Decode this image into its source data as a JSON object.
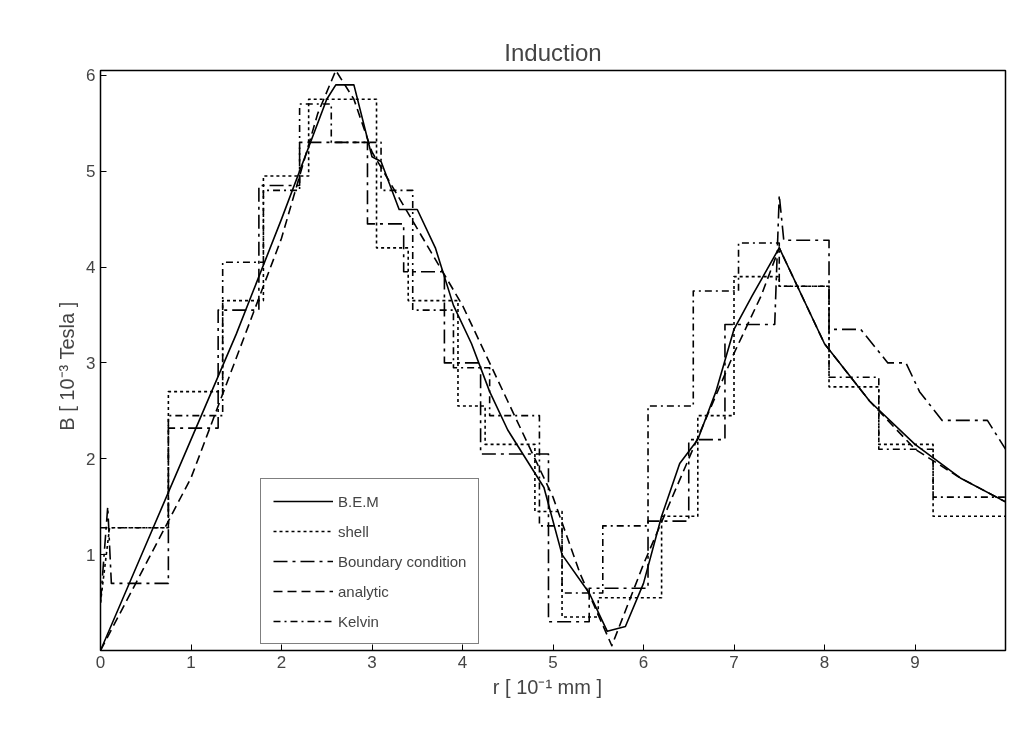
{
  "chart_data": {
    "type": "line",
    "title": "Induction",
    "xlabel": "r   [ 10⁻¹ mm ]",
    "ylabel": "B   [ 10⁻³ Tesla ]",
    "xlim": [
      0,
      10
    ],
    "ylim": [
      0,
      6.05
    ],
    "xticks": [
      0,
      1,
      2,
      3,
      4,
      5,
      6,
      7,
      8,
      9
    ],
    "yticks": [
      1,
      2,
      3,
      4,
      5,
      6
    ],
    "grid": false,
    "legend": "bottom left",
    "marker": "none",
    "series": [
      {
        "name": "B.E.M",
        "color": "#000000",
        "line_style": "solid",
        "x": [
          0,
          0.5,
          1,
          1.5,
          2,
          2.5,
          2.6,
          2.8,
          3.0,
          3.1,
          3.3,
          3.5,
          3.7,
          3.9,
          4.1,
          4.3,
          4.5,
          4.7,
          4.9,
          5.1,
          5.4,
          5.6,
          5.8,
          6.0,
          6.2,
          6.4,
          6.6,
          6.8,
          7.0,
          7.2,
          7.5,
          8.0,
          8.5,
          9.0,
          9.5,
          10
        ],
        "values": [
          0,
          1.1,
          2.2,
          3.3,
          4.5,
          5.75,
          5.9,
          5.9,
          5.15,
          5.1,
          4.6,
          4.6,
          4.2,
          3.6,
          3.2,
          2.7,
          2.3,
          2.0,
          1.7,
          1.0,
          0.6,
          0.2,
          0.25,
          0.7,
          1.4,
          1.95,
          2.2,
          2.7,
          3.35,
          3.7,
          4.2,
          3.2,
          2.6,
          2.15,
          1.8,
          1.55
        ]
      },
      {
        "name": "shell",
        "color": "#000000",
        "line_style": "dotted",
        "x": [
          0,
          0.1,
          0.75,
          0.75,
          1.35,
          1.35,
          1.8,
          1.8,
          2.3,
          2.3,
          2.65,
          3.05,
          3.05,
          3.4,
          3.4,
          3.95,
          3.95,
          4.25,
          4.25,
          4.8,
          4.8,
          5.1,
          5.1,
          5.5,
          5.5,
          6.2,
          6.2,
          6.6,
          6.6,
          7.0,
          7.0,
          7.5,
          7.5,
          8.05,
          8.05,
          8.6,
          8.6,
          9.2,
          9.2,
          10
        ],
        "values": [
          0.5,
          1.28,
          1.28,
          2.7,
          2.7,
          3.65,
          3.65,
          4.95,
          4.95,
          5.75,
          5.75,
          5.75,
          4.2,
          4.2,
          3.65,
          3.65,
          2.55,
          2.55,
          2.15,
          2.15,
          1.45,
          1.45,
          0.35,
          0.35,
          0.55,
          0.55,
          1.4,
          1.4,
          2.45,
          2.45,
          3.9,
          3.9,
          3.8,
          3.8,
          2.75,
          2.75,
          2.15,
          2.15,
          1.4,
          1.4
        ]
      },
      {
        "name": "Boundary condition",
        "color": "#000000",
        "line_style": "dashdot",
        "x": [
          0,
          0.08,
          0.12,
          0.75,
          0.75,
          1.3,
          1.3,
          1.75,
          1.75,
          2.2,
          2.2,
          2.6,
          2.6,
          2.95,
          2.95,
          3.35,
          3.35,
          3.8,
          3.8,
          4.2,
          4.2,
          4.95,
          4.95,
          5.4,
          5.4,
          6.05,
          6.05,
          6.5,
          6.5,
          6.9,
          6.9,
          7.45,
          7.5,
          7.55,
          8.05,
          8.05,
          8.4,
          8.7,
          8.9,
          9.05,
          9.3,
          9.8,
          10
        ],
        "values": [
          0.5,
          1.5,
          0.7,
          0.7,
          2.32,
          2.32,
          3.55,
          3.55,
          4.85,
          4.85,
          5.3,
          5.3,
          5.3,
          5.3,
          4.45,
          4.45,
          3.95,
          3.95,
          3.0,
          3.0,
          2.05,
          2.05,
          0.3,
          0.3,
          0.65,
          0.65,
          1.35,
          1.35,
          2.2,
          2.2,
          3.4,
          3.4,
          4.75,
          4.28,
          4.28,
          3.35,
          3.35,
          3.0,
          3.0,
          2.7,
          2.4,
          2.4,
          2.1
        ]
      },
      {
        "name": "analytic",
        "color": "#000000",
        "line_style": "dashed",
        "x": [
          0,
          1,
          2,
          2.4,
          2.6,
          2.8,
          3,
          3.5,
          4,
          4.5,
          5,
          5.3,
          5.65,
          6,
          6.5,
          7,
          7.3,
          7.5,
          8,
          8.5,
          9,
          9.5,
          10
        ],
        "values": [
          0,
          1.8,
          4.3,
          5.6,
          6.05,
          5.75,
          5.2,
          4.4,
          3.6,
          2.6,
          1.6,
          0.8,
          0.05,
          0.9,
          2.0,
          3.1,
          3.7,
          4.2,
          3.2,
          2.6,
          2.1,
          1.8,
          1.55
        ]
      },
      {
        "name": "Kelvin",
        "color": "#000000",
        "line_style": "dashdot2",
        "x": [
          0,
          0.1,
          0.75,
          0.75,
          1.35,
          1.35,
          1.8,
          1.8,
          2.2,
          2.2,
          2.55,
          2.55,
          3.1,
          3.1,
          3.45,
          3.45,
          3.9,
          3.9,
          4.3,
          4.3,
          4.85,
          4.85,
          5.1,
          5.1,
          5.55,
          5.55,
          6.05,
          6.05,
          6.55,
          6.55,
          7.05,
          7.05,
          7.5,
          7.5,
          8.05,
          8.05,
          8.6,
          8.6,
          9.2,
          9.2,
          10
        ],
        "values": [
          1.28,
          1.28,
          1.28,
          2.45,
          2.45,
          4.05,
          4.05,
          4.8,
          4.8,
          5.7,
          5.7,
          5.3,
          5.3,
          4.8,
          4.8,
          3.55,
          3.55,
          2.95,
          2.95,
          2.45,
          2.45,
          1.3,
          1.3,
          0.6,
          0.6,
          1.3,
          1.3,
          2.55,
          2.55,
          3.75,
          3.75,
          4.25,
          4.25,
          3.8,
          3.8,
          2.85,
          2.85,
          2.1,
          2.1,
          1.6,
          1.6
        ]
      }
    ]
  }
}
